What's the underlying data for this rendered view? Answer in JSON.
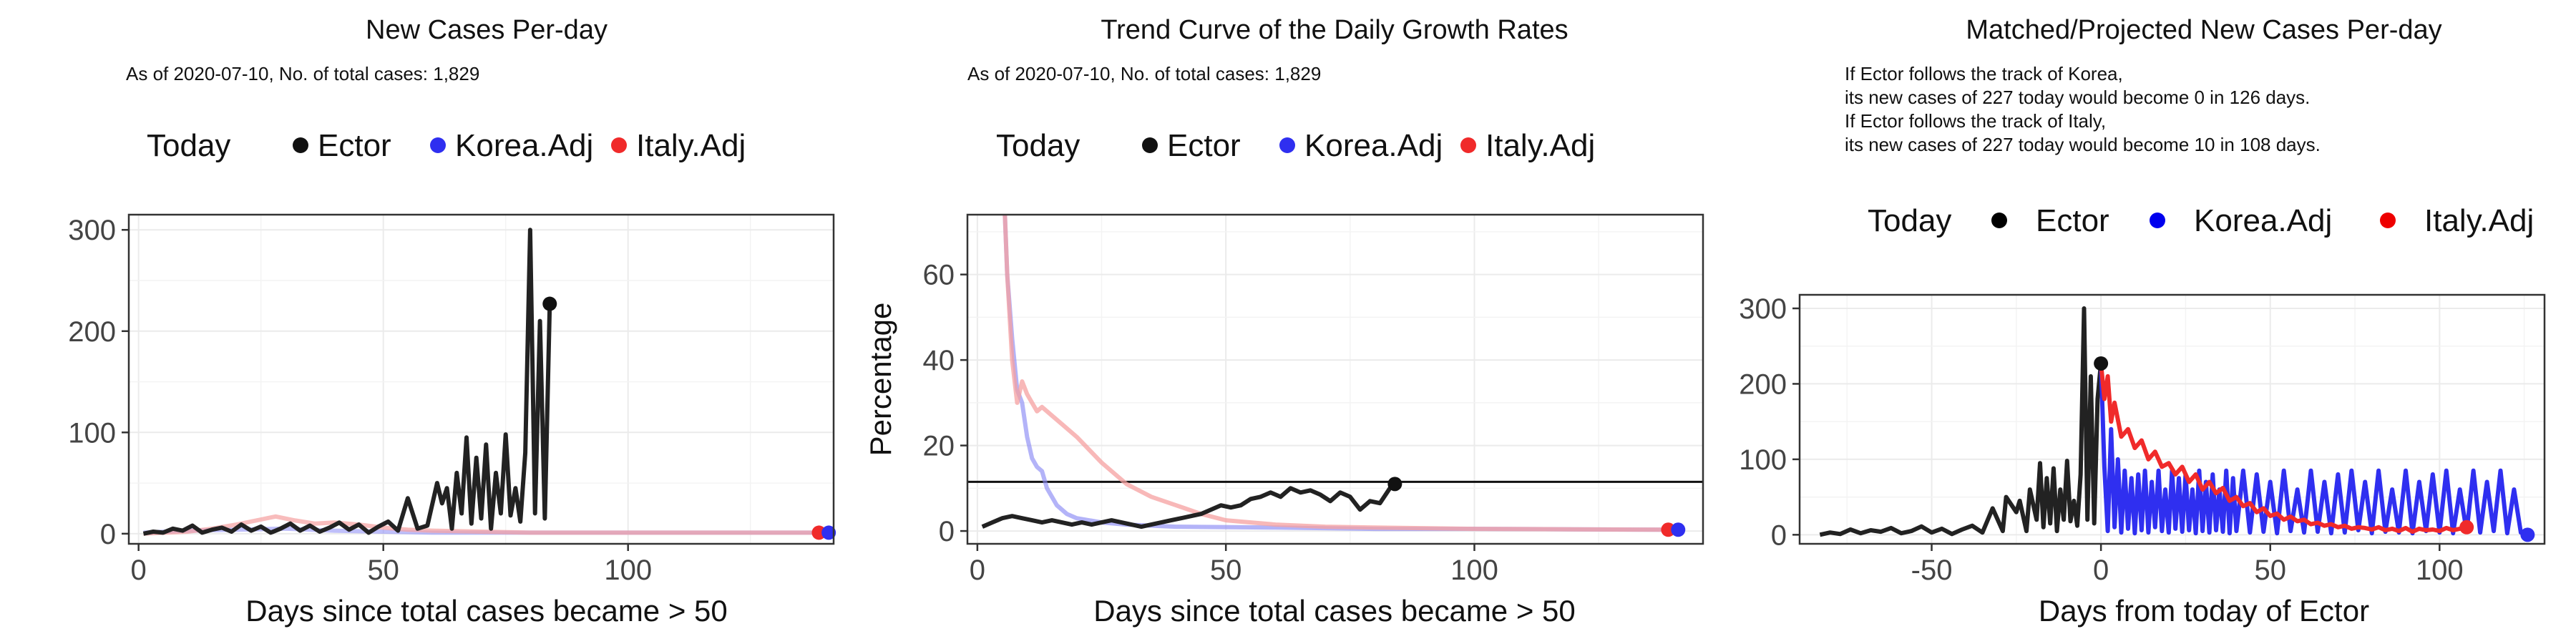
{
  "legend": {
    "items": [
      {
        "label": "Today",
        "color": "#111111"
      },
      {
        "label": "Ector",
        "color": "#1a1a1a"
      },
      {
        "label": "Korea.Adj",
        "color": "#2f2ff0"
      },
      {
        "label": "Italy.Adj",
        "color": "#f02a2a"
      }
    ]
  },
  "chart_data": [
    {
      "type": "line",
      "title": "New Cases Per-day",
      "subtitle": [
        "As of 2020-07-10, No. of total cases: 1,829"
      ],
      "xlabel": "Days since total cases became > 50",
      "ylabel": "",
      "xlim": [
        -2,
        142
      ],
      "ylim": [
        -10,
        315
      ],
      "xticks": [
        0,
        50,
        100
      ],
      "yticks": [
        0,
        100,
        200,
        300
      ],
      "legend_position": "top",
      "series": [
        {
          "name": "Korea.Adj",
          "color": "#8a8af5",
          "opacity": 0.55,
          "x": [
            1,
            10,
            20,
            30,
            40,
            50,
            60,
            80,
            100,
            120,
            140
          ],
          "y": [
            1,
            3,
            4,
            5,
            3,
            2,
            1,
            1,
            1,
            1,
            1
          ]
        },
        {
          "name": "Italy.Adj",
          "color": "#f5a0a0",
          "opacity": 0.7,
          "x": [
            1,
            10,
            15,
            20,
            25,
            28,
            32,
            36,
            40,
            45,
            50,
            55,
            60,
            70,
            80,
            100,
            120,
            138
          ],
          "y": [
            0,
            2,
            5,
            9,
            14,
            17,
            13,
            10,
            11,
            9,
            6,
            4,
            3,
            2,
            1,
            1,
            1,
            1
          ]
        },
        {
          "name": "Ector",
          "color": "#222222",
          "opacity": 1,
          "x": [
            1,
            3,
            5,
            7,
            9,
            11,
            13,
            15,
            17,
            19,
            21,
            23,
            25,
            27,
            29,
            31,
            33,
            35,
            37,
            39,
            41,
            43,
            45,
            47,
            49,
            51,
            53,
            55,
            57,
            59,
            61,
            62,
            63,
            64,
            65,
            66,
            67,
            68,
            69,
            70,
            71,
            72,
            73,
            74,
            75,
            76,
            77,
            78,
            79,
            80,
            81,
            82,
            83,
            84
          ],
          "y": [
            0,
            2,
            1,
            5,
            3,
            8,
            1,
            4,
            6,
            2,
            9,
            3,
            7,
            1,
            5,
            10,
            3,
            8,
            2,
            6,
            11,
            4,
            9,
            1,
            7,
            12,
            3,
            35,
            5,
            8,
            50,
            30,
            45,
            5,
            60,
            20,
            95,
            10,
            75,
            15,
            88,
            5,
            60,
            20,
            98,
            18,
            45,
            12,
            80,
            300,
            20,
            210,
            15,
            227
          ]
        }
      ],
      "markers": [
        {
          "series": "Ector",
          "x": 84,
          "y": 227
        },
        {
          "series": "Italy.Adj",
          "x": 139,
          "y": 1
        },
        {
          "series": "Korea.Adj",
          "x": 141,
          "y": 1
        }
      ]
    },
    {
      "type": "line",
      "title": "Trend Curve of the Daily Growth Rates",
      "subtitle": [
        "As of 2020-07-10, No. of total cases: 1,829"
      ],
      "xlabel": "Days since total cases became > 50",
      "ylabel": "Percentage",
      "xlim": [
        -2,
        146
      ],
      "ylim": [
        -3,
        74
      ],
      "xticks": [
        0,
        50,
        100
      ],
      "yticks": [
        0,
        20,
        40,
        60
      ],
      "hline": 11.5,
      "legend_position": "top",
      "series": [
        {
          "name": "Korea.Adj",
          "color": "#8a8af5",
          "opacity": 0.65,
          "x": [
            5,
            6,
            7,
            8,
            9,
            10,
            11,
            12,
            13,
            14,
            16,
            18,
            20,
            25,
            30,
            40,
            60,
            80,
            100,
            120,
            140
          ],
          "y": [
            90,
            60,
            45,
            33,
            30,
            22,
            17,
            15,
            14,
            10,
            6,
            4,
            3,
            2,
            1.5,
            1,
            0.8,
            0.5,
            0.5,
            0.4,
            0.3
          ]
        },
        {
          "name": "Italy.Adj",
          "color": "#f5a0a0",
          "opacity": 0.75,
          "x": [
            5,
            6,
            7,
            8,
            9,
            10,
            11,
            12,
            13,
            15,
            17,
            20,
            25,
            30,
            35,
            40,
            45,
            50,
            55,
            60,
            70,
            80,
            100,
            120,
            140
          ],
          "y": [
            90,
            60,
            40,
            30,
            35,
            32,
            30,
            28,
            29,
            27,
            25,
            22,
            16,
            11,
            8,
            6,
            4,
            2.5,
            2,
            1.5,
            1,
            0.8,
            0.5,
            0.4,
            0.3
          ]
        },
        {
          "name": "Ector",
          "color": "#222222",
          "opacity": 1,
          "x": [
            1,
            3,
            5,
            7,
            9,
            11,
            13,
            15,
            17,
            19,
            21,
            23,
            25,
            27,
            29,
            31,
            33,
            35,
            37,
            39,
            41,
            43,
            45,
            47,
            49,
            51,
            53,
            55,
            57,
            59,
            61,
            63,
            65,
            67,
            69,
            71,
            73,
            75,
            77,
            79,
            81,
            83,
            84
          ],
          "y": [
            1,
            2,
            3,
            3.5,
            3,
            2.5,
            2,
            2.5,
            2,
            1.5,
            2,
            1.5,
            2,
            2.5,
            2,
            1.5,
            1,
            1.5,
            2,
            2.5,
            3,
            3.5,
            4,
            5,
            6,
            5.5,
            6,
            7.5,
            8,
            9,
            8,
            10,
            9,
            9.5,
            8.5,
            7,
            9,
            8,
            5,
            7,
            6.5,
            10,
            11
          ]
        }
      ],
      "markers": [
        {
          "series": "Ector",
          "x": 84,
          "y": 11
        },
        {
          "series": "Italy.Adj",
          "x": 139,
          "y": 0.3
        },
        {
          "series": "Korea.Adj",
          "x": 141,
          "y": 0.3
        }
      ]
    },
    {
      "type": "line",
      "title": "Matched/Projected New Cases Per-day",
      "subtitle": [
        "If Ector follows the track of Korea,",
        "its new cases of 227 today would become 0 in 126 days.",
        "If Ector follows the track of Italy,",
        "its new cases of 227 today would become 10 in 108 days."
      ],
      "xlabel": "Days from today of Ector",
      "ylabel": "",
      "xlim": [
        -89,
        131
      ],
      "ylim": [
        -12,
        318
      ],
      "xticks": [
        -50,
        0,
        50,
        100
      ],
      "yticks": [
        0,
        100,
        200,
        300
      ],
      "legend_position": "top",
      "series": [
        {
          "name": "Ector",
          "color": "#222222",
          "opacity": 1,
          "x": [
            -83,
            -80,
            -77,
            -74,
            -71,
            -68,
            -65,
            -62,
            -59,
            -56,
            -53,
            -50,
            -47,
            -44,
            -41,
            -38,
            -35,
            -32,
            -29,
            -28,
            -25,
            -24,
            -22,
            -21,
            -19,
            -18,
            -17,
            -16,
            -15,
            -14,
            -13,
            -12,
            -11,
            -10,
            -9,
            -8,
            -7,
            -6,
            -5,
            -4,
            -3,
            -2,
            -1,
            0
          ],
          "y": [
            0,
            3,
            1,
            7,
            2,
            6,
            4,
            9,
            2,
            5,
            11,
            3,
            8,
            1,
            7,
            12,
            3,
            35,
            5,
            50,
            30,
            45,
            5,
            60,
            20,
            95,
            10,
            75,
            15,
            88,
            5,
            60,
            20,
            98,
            18,
            45,
            12,
            80,
            300,
            20,
            210,
            15,
            180,
            227
          ]
        },
        {
          "name": "Korea.Adj",
          "color": "#2f2ff0",
          "opacity": 1,
          "x": [
            0,
            1,
            2,
            3,
            4,
            5,
            6,
            7,
            8,
            9,
            10,
            11,
            12,
            13,
            14,
            15,
            16,
            17,
            18,
            19,
            20,
            21,
            22,
            23,
            24,
            25,
            26,
            27,
            28,
            29,
            30,
            31,
            32,
            33,
            34,
            35,
            36,
            37,
            38,
            39,
            40,
            42,
            44,
            46,
            48,
            50,
            52,
            54,
            56,
            58,
            60,
            62,
            64,
            66,
            68,
            70,
            72,
            74,
            76,
            78,
            80,
            82,
            84,
            86,
            88,
            90,
            92,
            94,
            96,
            98,
            100,
            102,
            104,
            106,
            108,
            110,
            112,
            114,
            116,
            118,
            120,
            122,
            124,
            126
          ],
          "y": [
            227,
            90,
            5,
            140,
            10,
            100,
            3,
            85,
            8,
            75,
            2,
            80,
            6,
            85,
            3,
            70,
            10,
            85,
            5,
            60,
            3,
            85,
            8,
            75,
            4,
            80,
            6,
            60,
            2,
            85,
            5,
            70,
            3,
            80,
            6,
            60,
            4,
            85,
            2,
            75,
            5,
            85,
            3,
            80,
            4,
            70,
            2,
            85,
            5,
            60,
            3,
            85,
            4,
            70,
            2,
            80,
            3,
            85,
            6,
            70,
            2,
            85,
            4,
            60,
            3,
            85,
            2,
            70,
            5,
            80,
            3,
            85,
            2,
            60,
            4,
            85,
            3,
            70,
            5,
            85,
            2,
            60,
            3,
            0
          ]
        },
        {
          "name": "Italy.Adj",
          "color": "#f02a2a",
          "opacity": 1,
          "x": [
            0,
            1,
            2,
            3,
            4,
            6,
            8,
            10,
            12,
            14,
            16,
            18,
            20,
            22,
            24,
            26,
            28,
            30,
            32,
            34,
            36,
            38,
            40,
            42,
            44,
            46,
            48,
            50,
            52,
            54,
            56,
            58,
            60,
            62,
            64,
            66,
            68,
            70,
            72,
            74,
            76,
            78,
            80,
            82,
            84,
            86,
            88,
            90,
            92,
            94,
            96,
            98,
            100,
            102,
            104,
            106,
            108
          ],
          "y": [
            227,
            180,
            210,
            150,
            175,
            130,
            140,
            115,
            125,
            100,
            110,
            90,
            95,
            80,
            90,
            70,
            80,
            60,
            70,
            55,
            62,
            45,
            50,
            38,
            42,
            30,
            35,
            25,
            28,
            20,
            24,
            18,
            20,
            14,
            16,
            12,
            14,
            10,
            12,
            8,
            10,
            9,
            7,
            10,
            6,
            8,
            5,
            9,
            4,
            8,
            6,
            7,
            5,
            9,
            6,
            8,
            10
          ]
        }
      ],
      "markers": [
        {
          "series": "Ector",
          "x": 0,
          "y": 227
        },
        {
          "series": "Italy.Adj",
          "x": 108,
          "y": 10
        },
        {
          "series": "Korea.Adj",
          "x": 126,
          "y": 0
        }
      ]
    }
  ]
}
